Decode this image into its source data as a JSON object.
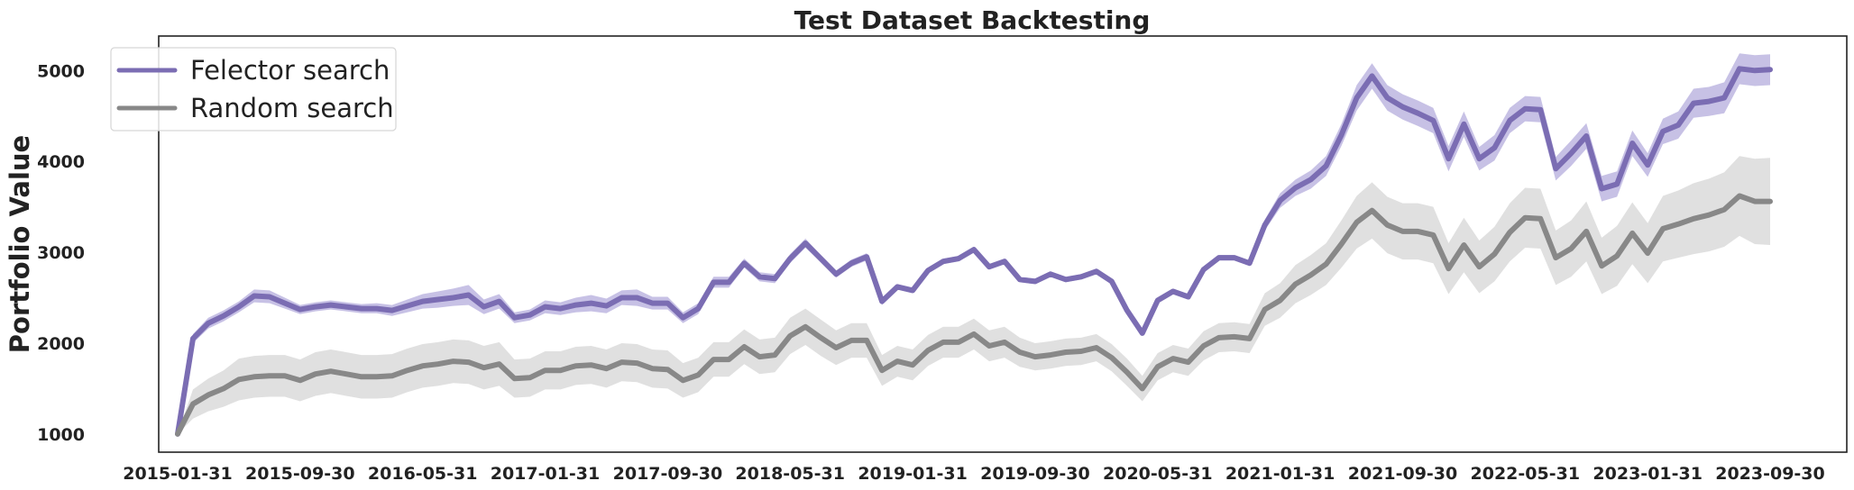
{
  "chart_data": {
    "type": "line",
    "title": "Test Dataset Backtesting",
    "xlabel": "",
    "ylabel": "Portfolio Value",
    "ylim": [
      800,
      5380
    ],
    "yticks": [
      1000,
      2000,
      3000,
      4000,
      5000
    ],
    "grid": false,
    "legend_position": "top-left",
    "x_tick_labels": [
      "2015-01-31",
      "2015-09-30",
      "2016-05-31",
      "2017-01-31",
      "2017-09-30",
      "2018-05-31",
      "2019-01-31",
      "2019-09-30",
      "2020-05-31",
      "2021-01-31",
      "2021-09-30",
      "2022-05-31",
      "2023-01-31",
      "2023-09-30"
    ],
    "x_tick_indices": [
      0,
      8,
      16,
      24,
      32,
      40,
      48,
      56,
      64,
      72,
      80,
      88,
      96,
      104
    ],
    "series": [
      {
        "name": "Felector search",
        "color": "#7b6db3",
        "band_color": "#b9b1de",
        "values": [
          1000,
          2050,
          2220,
          2300,
          2400,
          2520,
          2510,
          2440,
          2370,
          2400,
          2420,
          2400,
          2380,
          2380,
          2360,
          2410,
          2460,
          2480,
          2500,
          2530,
          2400,
          2460,
          2280,
          2310,
          2400,
          2380,
          2420,
          2440,
          2410,
          2500,
          2500,
          2440,
          2440,
          2280,
          2380,
          2670,
          2670,
          2880,
          2730,
          2710,
          2930,
          3100,
          2930,
          2760,
          2880,
          2950,
          2460,
          2620,
          2580,
          2800,
          2900,
          2930,
          3030,
          2840,
          2900,
          2700,
          2680,
          2760,
          2700,
          2730,
          2790,
          2680,
          2360,
          2110,
          2470,
          2570,
          2510,
          2810,
          2940,
          2940,
          2880,
          3300,
          3570,
          3710,
          3800,
          3950,
          4290,
          4700,
          4940,
          4700,
          4600,
          4530,
          4450,
          4030,
          4410,
          4030,
          4150,
          4450,
          4580,
          4570,
          3920,
          4090,
          4280,
          3700,
          3750,
          4200,
          3960,
          4330,
          4400,
          4640,
          4660,
          4700,
          5020,
          5000,
          5010
        ],
        "lower": [
          1000,
          2000,
          2160,
          2240,
          2340,
          2450,
          2440,
          2380,
          2320,
          2350,
          2370,
          2350,
          2330,
          2330,
          2300,
          2340,
          2380,
          2390,
          2410,
          2420,
          2320,
          2380,
          2220,
          2250,
          2330,
          2310,
          2340,
          2350,
          2330,
          2420,
          2410,
          2370,
          2370,
          2220,
          2320,
          2610,
          2610,
          2830,
          2680,
          2660,
          2880,
          3050,
          2890,
          2720,
          2840,
          2910,
          2420,
          2590,
          2550,
          2770,
          2870,
          2900,
          3000,
          2810,
          2870,
          2670,
          2650,
          2730,
          2670,
          2700,
          2760,
          2650,
          2330,
          2080,
          2440,
          2540,
          2480,
          2780,
          2910,
          2910,
          2850,
          3240,
          3490,
          3620,
          3700,
          3840,
          4170,
          4560,
          4800,
          4560,
          4460,
          4390,
          4310,
          3890,
          4270,
          3900,
          4010,
          4310,
          4440,
          4430,
          3790,
          3950,
          4140,
          3560,
          3610,
          4060,
          3830,
          4190,
          4250,
          4480,
          4500,
          4530,
          4850,
          4830,
          4840
        ],
        "upper": [
          1000,
          2100,
          2280,
          2360,
          2460,
          2590,
          2580,
          2500,
          2420,
          2450,
          2470,
          2450,
          2430,
          2440,
          2420,
          2480,
          2540,
          2570,
          2600,
          2640,
          2480,
          2540,
          2340,
          2370,
          2470,
          2450,
          2500,
          2530,
          2490,
          2580,
          2590,
          2510,
          2510,
          2340,
          2440,
          2730,
          2730,
          2930,
          2780,
          2760,
          2980,
          3150,
          2970,
          2800,
          2920,
          2990,
          2500,
          2650,
          2610,
          2830,
          2930,
          2960,
          3060,
          2870,
          2930,
          2730,
          2710,
          2790,
          2730,
          2760,
          2820,
          2710,
          2390,
          2140,
          2500,
          2600,
          2540,
          2840,
          2970,
          2970,
          2910,
          3360,
          3650,
          3800,
          3900,
          4060,
          4410,
          4840,
          5080,
          4840,
          4740,
          4670,
          4590,
          4170,
          4550,
          4160,
          4290,
          4590,
          4720,
          4710,
          4050,
          4230,
          4420,
          3840,
          3890,
          4340,
          4090,
          4470,
          4550,
          4800,
          4820,
          4870,
          5190,
          5170,
          5180
        ]
      },
      {
        "name": "Random search",
        "color": "#888888",
        "band_color": "#d8d8d8",
        "values": [
          1000,
          1330,
          1430,
          1500,
          1600,
          1630,
          1640,
          1640,
          1590,
          1660,
          1690,
          1660,
          1630,
          1630,
          1640,
          1700,
          1750,
          1770,
          1800,
          1790,
          1730,
          1770,
          1610,
          1620,
          1700,
          1700,
          1750,
          1760,
          1720,
          1790,
          1780,
          1720,
          1710,
          1590,
          1650,
          1820,
          1820,
          1960,
          1850,
          1870,
          2080,
          2180,
          2060,
          1950,
          2030,
          2030,
          1700,
          1800,
          1760,
          1920,
          2010,
          2010,
          2100,
          1970,
          2010,
          1900,
          1850,
          1870,
          1900,
          1910,
          1950,
          1840,
          1680,
          1500,
          1740,
          1830,
          1790,
          1970,
          2060,
          2070,
          2050,
          2370,
          2470,
          2650,
          2750,
          2870,
          3090,
          3330,
          3460,
          3300,
          3230,
          3230,
          3190,
          2820,
          3080,
          2840,
          2980,
          3220,
          3380,
          3370,
          2940,
          3040,
          3230,
          2850,
          2960,
          3210,
          2990,
          3260,
          3310,
          3370,
          3410,
          3470,
          3620,
          3560,
          3560
        ],
        "lower": [
          1000,
          1170,
          1250,
          1300,
          1370,
          1400,
          1410,
          1410,
          1360,
          1420,
          1450,
          1420,
          1390,
          1390,
          1400,
          1460,
          1510,
          1530,
          1560,
          1550,
          1490,
          1530,
          1400,
          1410,
          1490,
          1490,
          1540,
          1550,
          1510,
          1580,
          1570,
          1510,
          1500,
          1400,
          1460,
          1630,
          1630,
          1770,
          1660,
          1680,
          1880,
          1980,
          1860,
          1760,
          1840,
          1840,
          1530,
          1630,
          1590,
          1750,
          1840,
          1840,
          1930,
          1800,
          1840,
          1740,
          1700,
          1720,
          1750,
          1760,
          1800,
          1690,
          1530,
          1360,
          1590,
          1680,
          1640,
          1810,
          1900,
          1910,
          1890,
          2190,
          2280,
          2440,
          2530,
          2640,
          2830,
          3040,
          3150,
          2990,
          2920,
          2920,
          2880,
          2540,
          2780,
          2550,
          2680,
          2900,
          3050,
          3040,
          2640,
          2730,
          2900,
          2540,
          2630,
          2870,
          2660,
          2900,
          2940,
          2980,
          3010,
          3060,
          3180,
          3090,
          3080
        ],
        "upper": [
          1000,
          1490,
          1610,
          1700,
          1830,
          1860,
          1870,
          1870,
          1820,
          1900,
          1930,
          1900,
          1870,
          1870,
          1880,
          1940,
          1990,
          2010,
          2040,
          2030,
          1970,
          2010,
          1820,
          1830,
          1910,
          1910,
          1960,
          1970,
          1930,
          2000,
          1990,
          1930,
          1920,
          1780,
          1840,
          2010,
          2010,
          2150,
          2040,
          2060,
          2280,
          2380,
          2260,
          2140,
          2220,
          2220,
          1870,
          1970,
          1930,
          2090,
          2180,
          2180,
          2270,
          2140,
          2180,
          2060,
          2000,
          2020,
          2050,
          2060,
          2100,
          1990,
          1830,
          1640,
          1890,
          1980,
          1940,
          2130,
          2220,
          2230,
          2210,
          2550,
          2660,
          2860,
          2970,
          3100,
          3350,
          3620,
          3770,
          3610,
          3540,
          3540,
          3500,
          3100,
          3380,
          3130,
          3280,
          3540,
          3710,
          3700,
          3240,
          3350,
          3560,
          3160,
          3290,
          3550,
          3320,
          3620,
          3680,
          3760,
          3810,
          3880,
          4060,
          4030,
          4040
        ]
      }
    ]
  }
}
